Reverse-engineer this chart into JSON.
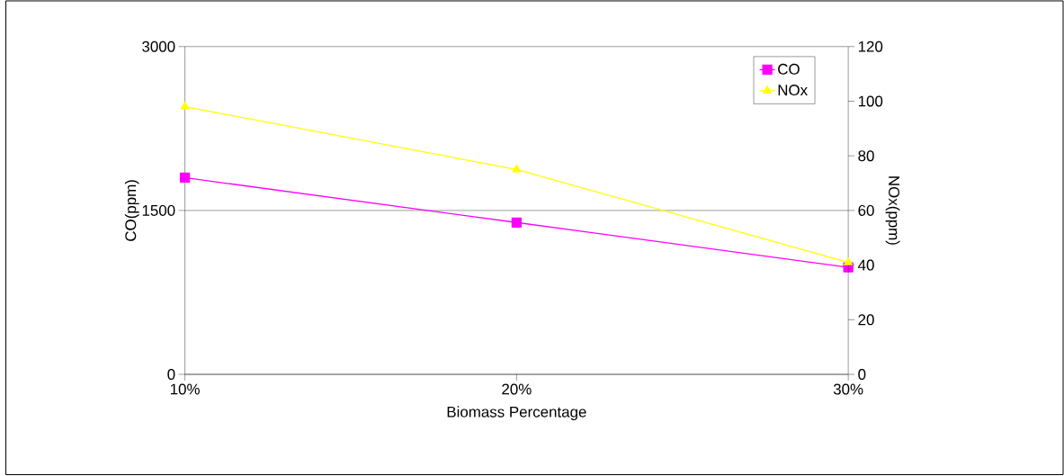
{
  "chart_data": {
    "type": "line",
    "xlabel": "Biomass Percentage",
    "ylabel": "CO(ppm)",
    "y2label": "NOx(ppm)",
    "categories": [
      "10%",
      "20%",
      "30%"
    ],
    "series": [
      {
        "name": "CO",
        "color": "#ff00ff",
        "values": [
          1800,
          1390,
          980
        ],
        "marker": "square"
      },
      {
        "name": "NOx",
        "color": "#ffff00",
        "values": [
          98,
          75,
          41
        ],
        "marker": "triangle",
        "axis": "y2"
      }
    ],
    "ylim": [
      0,
      3000
    ],
    "yticks": [
      0,
      1500,
      3000
    ],
    "y2lim": [
      0,
      120
    ],
    "y2ticks": [
      0,
      20,
      40,
      60,
      80,
      100,
      120
    ],
    "grid": "y",
    "legend": "top right"
  }
}
